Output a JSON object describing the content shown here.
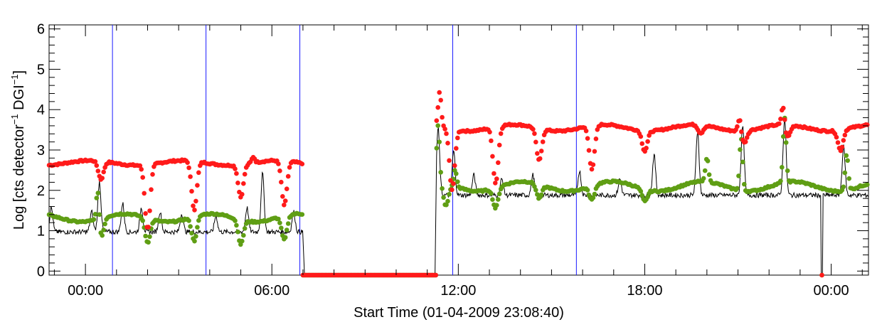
{
  "chart_data": {
    "type": "scatter",
    "title": "",
    "xlabel": "Start Time (01-04-2009 23:08:40)",
    "ylabel_parts": {
      "a": "Log [cts detector",
      "sup1": "−1",
      "b": " DGI",
      "sup2": "−1",
      "c": "]"
    },
    "xlim": [
      -1.17,
      25.2
    ],
    "ylim": [
      -0.1,
      6.1
    ],
    "x_ticks": [
      {
        "value": 0,
        "label": "00:00"
      },
      {
        "value": 6,
        "label": "06:00"
      },
      {
        "value": 12,
        "label": "12:00"
      },
      {
        "value": 18,
        "label": "18:00"
      },
      {
        "value": 24,
        "label": "00:00"
      }
    ],
    "y_ticks": [
      {
        "value": 0,
        "label": "0"
      },
      {
        "value": 1,
        "label": "1"
      },
      {
        "value": 2,
        "label": "2"
      },
      {
        "value": 3,
        "label": "3"
      },
      {
        "value": 4,
        "label": "4"
      },
      {
        "value": 5,
        "label": "5"
      },
      {
        "value": 6,
        "label": "6"
      }
    ],
    "vertical_lines_hours": [
      0.87,
      3.88,
      6.9,
      11.82,
      15.8
    ],
    "gap": {
      "start": 7.0,
      "end": 11.3,
      "value": -0.1
    },
    "dropout": {
      "x": 23.7,
      "value": -0.1
    },
    "series": [
      {
        "name": "red",
        "color": "#ff1a1a",
        "marker": "dot",
        "segments": [
          {
            "start": -1.17,
            "end": 7.0,
            "base": 2.68,
            "amp": 0.06,
            "period": 3.0,
            "phase": 0.2,
            "dips": [
              [
                0.5,
                0.45
              ],
              [
                2.0,
                1.6
              ],
              [
                3.5,
                1.2
              ],
              [
                5.0,
                0.8
              ],
              [
                6.4,
                1.1
              ]
            ],
            "spikes": [
              [
                5.4,
                0.15
              ]
            ]
          },
          {
            "start": 11.3,
            "end": 25.2,
            "base": 3.55,
            "amp": 0.08,
            "period": 2.9,
            "phase": 0.5,
            "dips": [
              [
                11.8,
                1.5
              ],
              [
                13.2,
                1.4
              ],
              [
                14.6,
                0.8
              ],
              [
                16.3,
                1.1
              ],
              [
                18.0,
                0.5
              ],
              [
                19.8,
                0.2
              ],
              [
                21.2,
                0.3
              ],
              [
                22.6,
                0.3
              ],
              [
                24.3,
                0.5
              ]
            ],
            "spikes": [
              [
                11.4,
                0.85
              ],
              [
                21.05,
                0.35
              ],
              [
                22.45,
                0.5
              ]
            ]
          }
        ]
      },
      {
        "name": "green",
        "color": "#5f9e14",
        "marker": "dot",
        "segments": [
          {
            "start": -1.17,
            "end": 7.0,
            "base": 1.32,
            "amp": 0.1,
            "period": 2.8,
            "phase": 0.8,
            "dips": [
              [
                0.5,
                0.5
              ],
              [
                2.0,
                0.6
              ],
              [
                3.5,
                0.6
              ],
              [
                5.0,
                0.6
              ],
              [
                6.4,
                0.6
              ]
            ],
            "spikes": [
              [
                0.4,
                0.9
              ]
            ]
          },
          {
            "start": 11.3,
            "end": 25.2,
            "base": 2.1,
            "amp": 0.12,
            "period": 2.9,
            "phase": 0.4,
            "dips": [
              [
                11.6,
                0.55
              ],
              [
                13.2,
                0.5
              ],
              [
                14.6,
                0.35
              ],
              [
                16.3,
                0.35
              ],
              [
                18.0,
                0.3
              ]
            ],
            "spikes": [
              [
                11.35,
                1.4
              ],
              [
                11.9,
                0.4
              ],
              [
                20.0,
                0.6
              ],
              [
                21.1,
                1.3
              ],
              [
                22.5,
                1.6
              ],
              [
                24.5,
                0.9
              ]
            ]
          }
        ]
      },
      {
        "name": "black",
        "color": "#000000",
        "marker": "line",
        "segments": [
          {
            "start": -1.17,
            "end": 7.0,
            "base": 0.97,
            "amp": 0.05,
            "spikes": [
              [
                -1.1,
                0.6
              ],
              [
                0.2,
                0.5
              ],
              [
                0.45,
                1.25
              ],
              [
                1.2,
                0.7
              ],
              [
                1.8,
                0.6
              ],
              [
                2.4,
                0.5
              ],
              [
                3.1,
                0.45
              ],
              [
                4.2,
                0.4
              ],
              [
                5.2,
                0.6
              ],
              [
                5.7,
                1.45
              ],
              [
                6.7,
                0.5
              ]
            ]
          },
          {
            "start": 11.3,
            "end": 25.2,
            "base": 1.88,
            "amp": 0.05,
            "spikes": [
              [
                11.35,
                1.65
              ],
              [
                11.85,
                1.1
              ],
              [
                12.5,
                0.5
              ],
              [
                13.4,
                0.4
              ],
              [
                14.4,
                0.5
              ],
              [
                15.9,
                0.6
              ],
              [
                17.2,
                0.4
              ],
              [
                18.3,
                1.0
              ],
              [
                19.7,
                1.6
              ],
              [
                21.15,
                1.7
              ],
              [
                22.5,
                1.9
              ],
              [
                24.4,
                1.2
              ]
            ]
          }
        ]
      }
    ]
  }
}
